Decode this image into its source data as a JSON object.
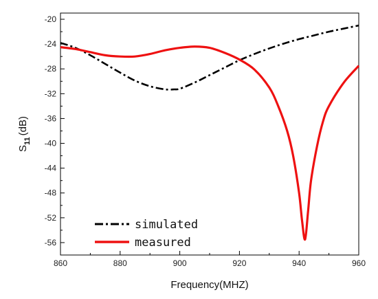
{
  "chart_data": {
    "type": "line",
    "xlabel": "Frequency(MHZ)",
    "ylabel_main": "S",
    "ylabel_sub": "11",
    "ylabel_unit": "(dB)",
    "xlim": [
      860,
      960
    ],
    "ylim": [
      -58,
      -19
    ],
    "x_ticks": [
      860,
      880,
      900,
      920,
      940,
      960
    ],
    "y_ticks": [
      -20,
      -24,
      -28,
      -32,
      -36,
      -40,
      -44,
      -48,
      -52,
      -56
    ],
    "grid": false,
    "legend_position": "bottom-left",
    "series": [
      {
        "name": "simulated",
        "color": "#000000",
        "style": "dash-dot",
        "x": [
          860,
          865,
          870,
          875,
          880,
          885,
          890,
          895,
          898,
          900,
          905,
          910,
          915,
          920,
          925,
          930,
          935,
          940,
          945,
          950,
          955,
          960
        ],
        "y": [
          -23.8,
          -24.6,
          -25.8,
          -27.2,
          -28.6,
          -29.9,
          -30.8,
          -31.3,
          -31.3,
          -31.2,
          -30.2,
          -29.0,
          -27.8,
          -26.6,
          -25.6,
          -24.7,
          -23.9,
          -23.2,
          -22.6,
          -22.0,
          -21.5,
          -21.0
        ]
      },
      {
        "name": "measured",
        "color": "#ee1111",
        "style": "solid",
        "x": [
          860,
          865,
          870,
          875,
          880,
          885,
          890,
          895,
          900,
          905,
          910,
          915,
          920,
          925,
          930,
          933,
          936,
          938,
          940,
          941,
          942,
          943,
          944,
          946,
          948,
          950,
          955,
          960
        ],
        "y": [
          -24.5,
          -24.8,
          -25.3,
          -25.8,
          -26.0,
          -26.0,
          -25.6,
          -25.0,
          -24.6,
          -24.4,
          -24.6,
          -25.4,
          -26.5,
          -28.1,
          -31.0,
          -34.0,
          -38.0,
          -42.0,
          -48.0,
          -52.5,
          -55.5,
          -51.0,
          -46.0,
          -40.5,
          -36.5,
          -34.0,
          -30.2,
          -27.5
        ]
      }
    ]
  }
}
